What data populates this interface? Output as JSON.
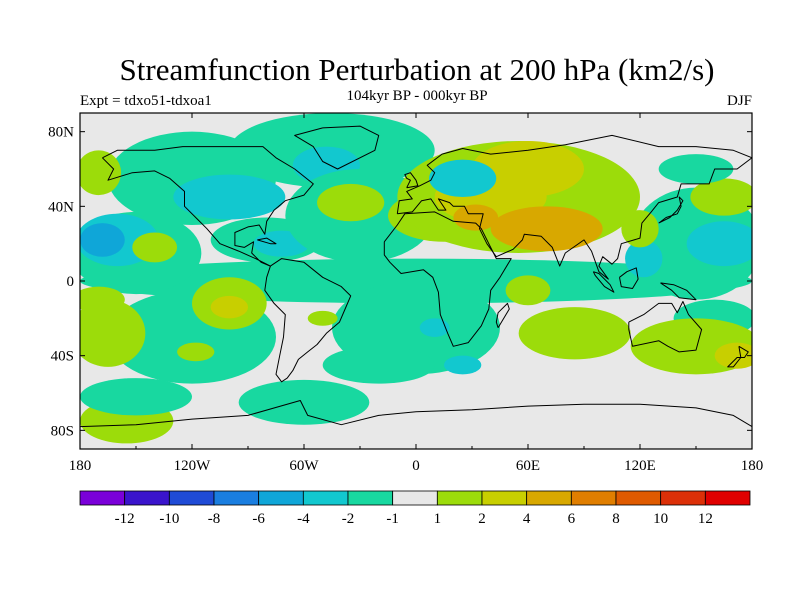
{
  "chart_data": {
    "type": "heatmap",
    "title": "Streamfunction Perturbation at 200 hPa (km2/s)",
    "left_label": "Expt = tdxo51-tdxoa1",
    "center_label": "104kyr BP - 000kyr BP",
    "right_label": "DJF",
    "x_ticks": [
      {
        "value": -180,
        "label": "180"
      },
      {
        "value": -120,
        "label": "120W"
      },
      {
        "value": -60,
        "label": "60W"
      },
      {
        "value": 0,
        "label": "0"
      },
      {
        "value": 60,
        "label": "60E"
      },
      {
        "value": 120,
        "label": "120E"
      },
      {
        "value": 180,
        "label": "180"
      }
    ],
    "y_ticks": [
      {
        "value": 80,
        "label": "80N"
      },
      {
        "value": 40,
        "label": "40N"
      },
      {
        "value": 0,
        "label": "0"
      },
      {
        "value": -40,
        "label": "40S"
      },
      {
        "value": -80,
        "label": "80S"
      }
    ],
    "xlim": [
      -180,
      180
    ],
    "ylim": [
      -90,
      90
    ],
    "colorbar": {
      "colors": [
        "#7a00d9",
        "#3a14cc",
        "#1f4bd6",
        "#1a7ee0",
        "#0fa6d8",
        "#12c8cf",
        "#18d8a0",
        "#e8e8e8",
        "#9cdc0a",
        "#c8cf00",
        "#d8a800",
        "#e07e00",
        "#df5a00",
        "#dc3008",
        "#e00000"
      ],
      "tick_labels": [
        "-12",
        "-10",
        "-8",
        "-6",
        "-4",
        "-2",
        "-1",
        "1",
        "2",
        "4",
        "6",
        "8",
        "10",
        "12"
      ]
    },
    "field_regions": [
      {
        "cls": 6,
        "lon": 0,
        "lat": 0,
        "rlon": 180,
        "rlat": 12
      },
      {
        "cls": 6,
        "lon": -150,
        "lat": 15,
        "rlon": 35,
        "rlat": 22
      },
      {
        "cls": 5,
        "lon": -160,
        "lat": 22,
        "rlon": 22,
        "rlat": 14
      },
      {
        "cls": 4,
        "lon": -168,
        "lat": 22,
        "rlon": 12,
        "rlat": 9
      },
      {
        "cls": 6,
        "lon": -120,
        "lat": 55,
        "rlon": 45,
        "rlat": 25
      },
      {
        "cls": 5,
        "lon": -100,
        "lat": 45,
        "rlon": 30,
        "rlat": 12
      },
      {
        "cls": 6,
        "lon": -45,
        "lat": 70,
        "rlon": 55,
        "rlat": 20
      },
      {
        "cls": 5,
        "lon": -48,
        "lat": 62,
        "rlon": 18,
        "rlat": 10
      },
      {
        "cls": 6,
        "lon": -80,
        "lat": 22,
        "rlon": 30,
        "rlat": 12
      },
      {
        "cls": 5,
        "lon": -72,
        "lat": 20,
        "rlon": 15,
        "rlat": 7
      },
      {
        "cls": 6,
        "lon": -30,
        "lat": 35,
        "rlon": 40,
        "rlat": 25
      },
      {
        "cls": 8,
        "lon": -35,
        "lat": 42,
        "rlon": 18,
        "rlat": 10
      },
      {
        "cls": 8,
        "lon": -140,
        "lat": 18,
        "rlon": 12,
        "rlat": 8
      },
      {
        "cls": 6,
        "lon": 0,
        "lat": -25,
        "rlon": 45,
        "rlat": 25
      },
      {
        "cls": 6,
        "lon": -20,
        "lat": -45,
        "rlon": 30,
        "rlat": 10
      },
      {
        "cls": 5,
        "lon": 10,
        "lat": -25,
        "rlon": 8,
        "rlat": 5
      },
      {
        "cls": 5,
        "lon": 25,
        "lat": -45,
        "rlon": 10,
        "rlat": 5
      },
      {
        "cls": 6,
        "lon": -120,
        "lat": -30,
        "rlon": 45,
        "rlat": 25
      },
      {
        "cls": 8,
        "lon": -100,
        "lat": -12,
        "rlon": 20,
        "rlat": 14
      },
      {
        "cls": 9,
        "lon": -100,
        "lat": -14,
        "rlon": 10,
        "rlat": 6
      },
      {
        "cls": 8,
        "lon": -165,
        "lat": -28,
        "rlon": 20,
        "rlat": 18
      },
      {
        "cls": 8,
        "lon": -170,
        "lat": -10,
        "rlon": 14,
        "rlat": 7
      },
      {
        "cls": 8,
        "lon": -118,
        "lat": -38,
        "rlon": 10,
        "rlat": 5
      },
      {
        "cls": 8,
        "lon": -50,
        "lat": -20,
        "rlon": 8,
        "rlat": 4
      },
      {
        "cls": 8,
        "lon": -155,
        "lat": -75,
        "rlon": 25,
        "rlat": 12
      },
      {
        "cls": 6,
        "lon": -150,
        "lat": -62,
        "rlon": 30,
        "rlat": 10
      },
      {
        "cls": 6,
        "lon": -60,
        "lat": -65,
        "rlon": 35,
        "rlat": 12
      },
      {
        "cls": 8,
        "lon": 15,
        "lat": 35,
        "rlon": 30,
        "rlat": 14
      },
      {
        "cls": 8,
        "lon": 55,
        "lat": 45,
        "rlon": 65,
        "rlat": 30
      },
      {
        "cls": 9,
        "lon": 40,
        "lat": 45,
        "rlon": 30,
        "rlat": 14
      },
      {
        "cls": 9,
        "lon": 60,
        "lat": 60,
        "rlon": 30,
        "rlat": 15
      },
      {
        "cls": 10,
        "lon": 70,
        "lat": 28,
        "rlon": 30,
        "rlat": 12
      },
      {
        "cls": 10,
        "lon": 32,
        "lat": 34,
        "rlon": 12,
        "rlat": 7
      },
      {
        "cls": 5,
        "lon": 25,
        "lat": 55,
        "rlon": 18,
        "rlat": 10
      },
      {
        "cls": 8,
        "lon": 60,
        "lat": -5,
        "rlon": 12,
        "rlat": 8
      },
      {
        "cls": 8,
        "lon": 85,
        "lat": -28,
        "rlon": 30,
        "rlat": 14
      },
      {
        "cls": 6,
        "lon": 150,
        "lat": 20,
        "rlon": 35,
        "rlat": 30
      },
      {
        "cls": 5,
        "lon": 165,
        "lat": 20,
        "rlon": 20,
        "rlat": 12
      },
      {
        "cls": 5,
        "lon": 122,
        "lat": 12,
        "rlon": 10,
        "rlat": 10
      },
      {
        "cls": 8,
        "lon": 165,
        "lat": 45,
        "rlon": 18,
        "rlat": 10
      },
      {
        "cls": 6,
        "lon": 150,
        "lat": 60,
        "rlon": 20,
        "rlat": 8
      },
      {
        "cls": 6,
        "lon": 160,
        "lat": -20,
        "rlon": 22,
        "rlat": 10
      },
      {
        "cls": 8,
        "lon": 150,
        "lat": -35,
        "rlon": 35,
        "rlat": 15
      },
      {
        "cls": 9,
        "lon": 172,
        "lat": -40,
        "rlon": 12,
        "rlat": 7
      },
      {
        "cls": 8,
        "lon": 120,
        "lat": 28,
        "rlon": 10,
        "rlat": 10
      },
      {
        "cls": 8,
        "lon": -170,
        "lat": 58,
        "rlon": 12,
        "rlat": 12
      }
    ]
  }
}
